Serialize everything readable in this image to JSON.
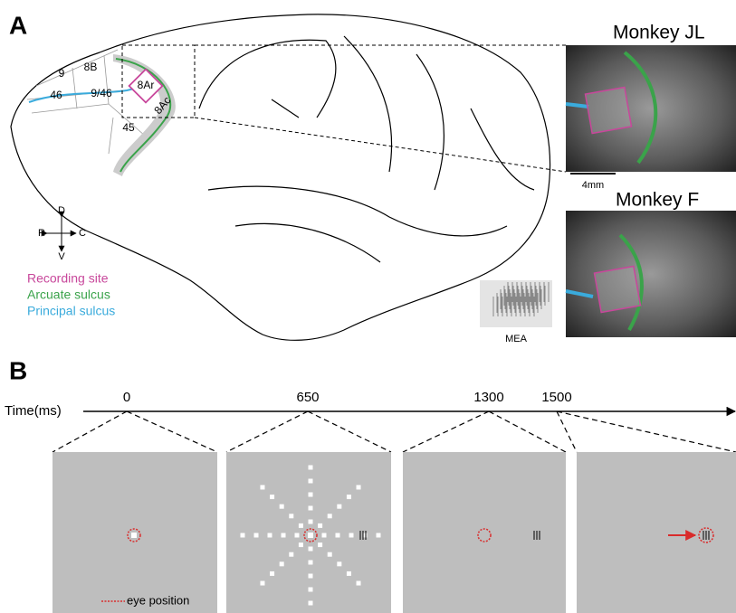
{
  "panel_a": {
    "label": "A",
    "monkeys": [
      "Monkey JL",
      "Monkey F"
    ],
    "scale_bar": "4mm",
    "areas": [
      "9",
      "8B",
      "46",
      "9/46",
      "8Ar",
      "8Ac",
      "45"
    ],
    "compass": {
      "dorsal": "D",
      "rostral": "R",
      "caudal": "C",
      "ventral": "V"
    },
    "legend": [
      "Recording site",
      "Arcuate sulcus",
      "Principal sulcus"
    ],
    "array_label": "MEA"
  },
  "panel_b": {
    "label": "B",
    "axis_label": "Time(ms)",
    "times": [
      "0",
      "650",
      "1300",
      "1500"
    ],
    "legend": "eye position"
  }
}
